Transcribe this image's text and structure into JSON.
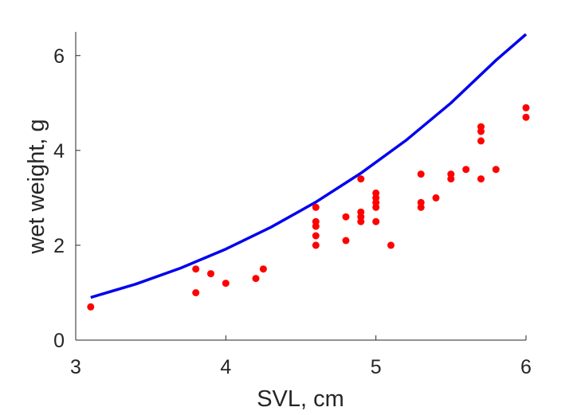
{
  "chart_data": {
    "type": "scatter",
    "title": "",
    "xlabel": "SVL, cm",
    "ylabel": "wet weight, g",
    "xlim": [
      3,
      6
    ],
    "ylim": [
      0,
      6.5
    ],
    "xticks": [
      3,
      4,
      5,
      6
    ],
    "yticks": [
      0,
      2,
      4,
      6
    ],
    "xtick_labels": [
      "3",
      "4",
      "5",
      "6"
    ],
    "ytick_labels": [
      "0",
      "2",
      "4",
      "6"
    ],
    "grid": false,
    "colors": {
      "points": "#ff0000",
      "curve": "#0000ee",
      "axes": "#262626"
    },
    "series": [
      {
        "type": "scatter",
        "points": [
          {
            "x": 3.1,
            "y": 0.7
          },
          {
            "x": 3.8,
            "y": 1.0
          },
          {
            "x": 3.8,
            "y": 1.5
          },
          {
            "x": 3.9,
            "y": 1.4
          },
          {
            "x": 4.0,
            "y": 1.2
          },
          {
            "x": 4.2,
            "y": 1.3
          },
          {
            "x": 4.25,
            "y": 1.5
          },
          {
            "x": 4.6,
            "y": 2.0
          },
          {
            "x": 4.6,
            "y": 2.2
          },
          {
            "x": 4.6,
            "y": 2.4
          },
          {
            "x": 4.6,
            "y": 2.5
          },
          {
            "x": 4.6,
            "y": 2.8
          },
          {
            "x": 4.8,
            "y": 2.1
          },
          {
            "x": 4.8,
            "y": 2.6
          },
          {
            "x": 4.9,
            "y": 2.5
          },
          {
            "x": 4.9,
            "y": 2.6
          },
          {
            "x": 4.9,
            "y": 2.7
          },
          {
            "x": 4.9,
            "y": 3.4
          },
          {
            "x": 5.0,
            "y": 2.5
          },
          {
            "x": 5.0,
            "y": 2.8
          },
          {
            "x": 5.0,
            "y": 2.9
          },
          {
            "x": 5.0,
            "y": 3.0
          },
          {
            "x": 5.0,
            "y": 3.1
          },
          {
            "x": 5.1,
            "y": 2.0
          },
          {
            "x": 5.3,
            "y": 2.8
          },
          {
            "x": 5.3,
            "y": 2.9
          },
          {
            "x": 5.3,
            "y": 3.5
          },
          {
            "x": 5.4,
            "y": 3.0
          },
          {
            "x": 5.5,
            "y": 3.4
          },
          {
            "x": 5.5,
            "y": 3.5
          },
          {
            "x": 5.6,
            "y": 3.6
          },
          {
            "x": 5.7,
            "y": 3.4
          },
          {
            "x": 5.7,
            "y": 4.2
          },
          {
            "x": 5.7,
            "y": 4.4
          },
          {
            "x": 5.7,
            "y": 4.5
          },
          {
            "x": 5.8,
            "y": 3.6
          },
          {
            "x": 6.0,
            "y": 4.7
          },
          {
            "x": 6.0,
            "y": 4.9
          }
        ]
      },
      {
        "type": "line",
        "x": [
          3.1,
          3.4,
          3.7,
          4.0,
          4.3,
          4.6,
          4.9,
          5.2,
          5.5,
          5.8,
          6.0
        ],
        "y": [
          0.9,
          1.18,
          1.52,
          1.92,
          2.38,
          2.91,
          3.52,
          4.21,
          5.0,
          5.9,
          6.45
        ]
      }
    ]
  }
}
